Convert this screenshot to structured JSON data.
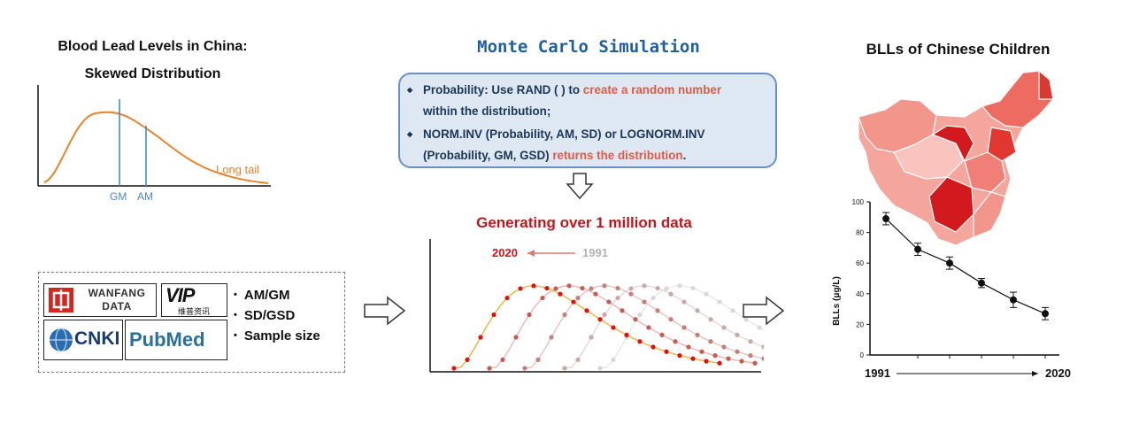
{
  "left_panel": {
    "title_line1": "Blood Lead Levels in China:",
    "title_line2": "Skewed Distribution",
    "gm_label": "GM",
    "am_label": "AM",
    "tail_label": "Long tail",
    "logos": {
      "wanfang_line1": "WANFANG",
      "wanfang_line2": "DATA",
      "vip_text": "VIP",
      "vip_sub": "维普资讯",
      "cnki_text": "CNKI",
      "pubmed_text": "PubMed"
    },
    "bullets": [
      "AM/GM",
      "SD/GSD",
      "Sample size"
    ]
  },
  "middle_panel": {
    "title": "Monte Carlo Simulation",
    "item1_plain": "Probability: Use RAND ( ) to ",
    "item1_highlight": "create a random number",
    "item1_rest": "within the distribution;",
    "item2_plain": "NORM.INV (Probability, AM, SD) or LOGNORM.INV (Probability, GM, GSD) ",
    "item2_highlight": "returns the distribution",
    "item2_end": ".",
    "generating_title": "Generating over 1 million data",
    "year_new": "2020",
    "year_old": "1991"
  },
  "right_panel": {
    "title": "BLLs of Chinese Children",
    "x_start": "1991",
    "x_end": "2020",
    "colors": {
      "map_dark": "#d21a1e",
      "map_mid": "#ee6b62",
      "map_light": "#f8c4bd"
    }
  },
  "chart_data": {
    "type": "line",
    "x": [
      1991,
      1995,
      1999,
      2003,
      2007,
      2011
    ],
    "values": [
      89,
      69,
      60,
      47,
      36,
      27
    ],
    "errors": [
      4,
      4,
      4,
      3,
      5,
      4
    ],
    "ylabel": "BLLs (μg/L)",
    "ylim": [
      0,
      100
    ],
    "yticks": [
      0,
      20,
      40,
      60,
      80,
      100
    ]
  }
}
